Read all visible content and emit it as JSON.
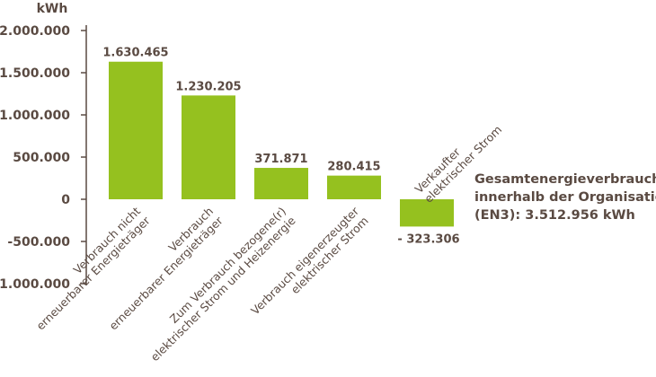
{
  "chart_data": {
    "type": "bar",
    "ylabel": "kWh",
    "ylim": [
      -1000000,
      2000000
    ],
    "yticks": [
      {
        "value": 2000000,
        "label": "2.000.000"
      },
      {
        "value": 1500000,
        "label": "1.500.000"
      },
      {
        "value": 1000000,
        "label": "1.000.000"
      },
      {
        "value": 500000,
        "label": "500.000"
      },
      {
        "value": 0,
        "label": "0"
      },
      {
        "value": -500000,
        "label": "-500.000"
      },
      {
        "value": -1000000,
        "label": "-1.000.000"
      }
    ],
    "bars": [
      {
        "lines": [
          "Verbrauch nicht",
          "erneuerbarer Energieträger"
        ],
        "value": 1630465,
        "value_label": "1.630.465"
      },
      {
        "lines": [
          "Verbrauch",
          "erneuerbarer Energieträger"
        ],
        "value": 1230205,
        "value_label": "1.230.205"
      },
      {
        "lines": [
          "Zum Verbrauch bezogene(r)",
          "elektrischer Strom und Heizenergie"
        ],
        "value": 371871,
        "value_label": "371.871"
      },
      {
        "lines": [
          "Verbrauch eigenerzeugter",
          "elektrischer Strom"
        ],
        "value": 280415,
        "value_label": "280.415"
      },
      {
        "lines": [
          "Verkaufter",
          "elektrischer Strom"
        ],
        "value": -323306,
        "value_label": "- 323.306"
      }
    ],
    "bar_color": "#95c11f",
    "axis_color": "#5a4a42",
    "grid": false,
    "legend": "none"
  },
  "total": {
    "lines": [
      "Gesamtenergieverbrauch",
      "innerhalb der Organisation",
      "(EN3): 3.512.956 kWh"
    ]
  }
}
